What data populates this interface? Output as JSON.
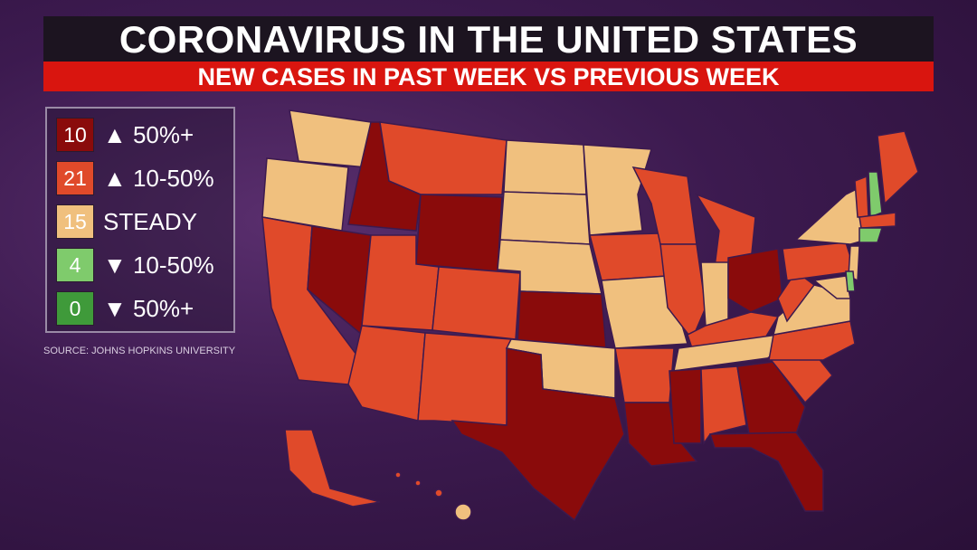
{
  "header": {
    "title": "CORONAVIRUS IN THE UNITED STATES",
    "subtitle": "NEW CASES IN PAST WEEK VS PREVIOUS WEEK"
  },
  "legend": [
    {
      "count": "10",
      "label": "▲ 50%+",
      "color": "#8a0b0b"
    },
    {
      "count": "21",
      "label": "▲ 10-50%",
      "color": "#e04a2a"
    },
    {
      "count": "15",
      "label": "STEADY",
      "color": "#f0c07e"
    },
    {
      "count": "4",
      "label": "▼ 10-50%",
      "color": "#7fcb6c"
    },
    {
      "count": "0",
      "label": "▼ 50%+",
      "color": "#3f9a3a"
    }
  ],
  "source": "SOURCE: JOHNS HOPKINS UNIVERSITY"
}
